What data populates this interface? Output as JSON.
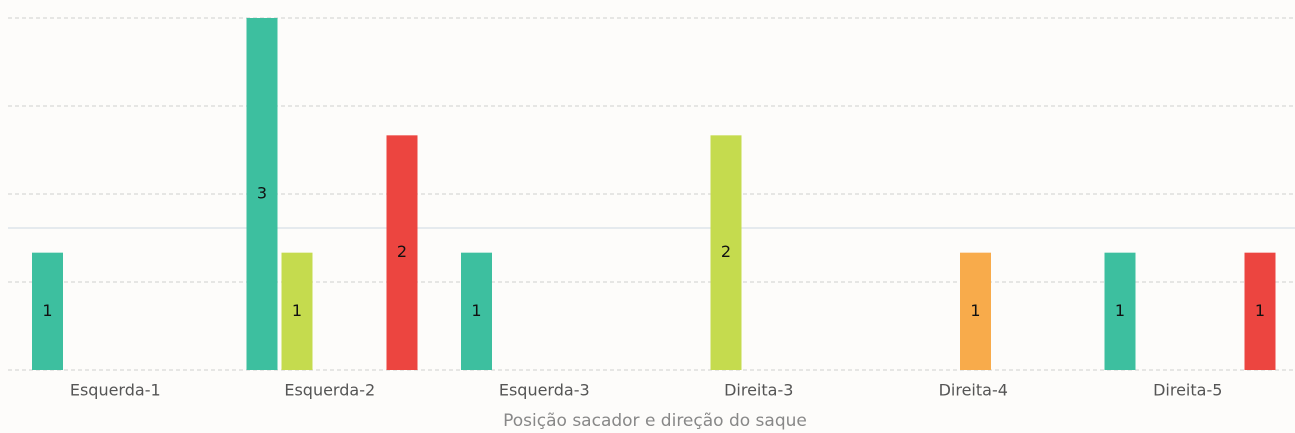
{
  "chart_data": {
    "type": "bar",
    "x_label": "Posição sacador e direção do saque",
    "categories": [
      "Esquerda-1",
      "Esquerda-2",
      "Esquerda-3",
      "Direita-3",
      "Direita-4",
      "Direita-5"
    ],
    "series": [
      {
        "color": "#3dbf9f",
        "values": [
          1,
          3,
          1,
          null,
          null,
          1
        ]
      },
      {
        "color": "#c5db4e",
        "values": [
          null,
          1,
          null,
          2,
          null,
          null
        ]
      },
      {
        "color": "#f8ab4b",
        "values": [
          null,
          null,
          null,
          null,
          1,
          null
        ]
      },
      {
        "color": "#ec4540",
        "values": [
          null,
          2,
          null,
          null,
          null,
          1
        ]
      }
    ],
    "ylim": [
      0,
      3
    ],
    "yticks": [
      0,
      0.75,
      1.5,
      2.25,
      3
    ],
    "grid": true,
    "reference_value": 1.21
  }
}
